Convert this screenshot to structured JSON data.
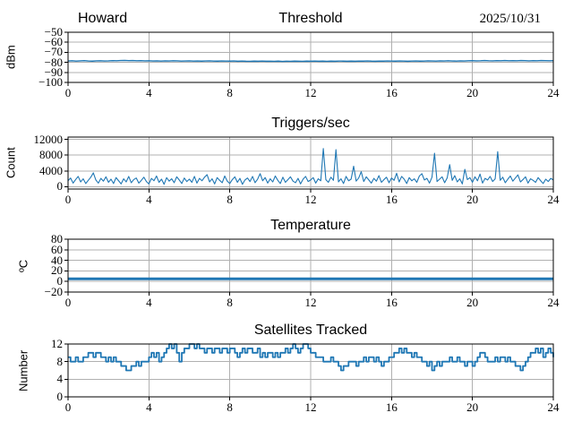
{
  "figure": {
    "background": "#ffffff",
    "line_color": "#1f77b4",
    "grid_color": "#b0b0b0",
    "axis_color": "#000000"
  },
  "chart_data": [
    {
      "type": "line",
      "title": "Threshold",
      "title_left": "Howard",
      "title_right": "2025/10/31",
      "ylabel": "dBm",
      "xlabel": "",
      "grid": true,
      "legend": "none",
      "xlim": [
        0,
        24
      ],
      "ylim": [
        -100,
        -50
      ],
      "xticks": [
        0,
        4,
        8,
        12,
        16,
        20,
        24
      ],
      "yticks": [
        -50,
        -60,
        -70,
        -80,
        -90,
        -100
      ],
      "x_start": 0,
      "x_step": 0.2,
      "y": [
        -78.6,
        -78.4,
        -78.7,
        -78.5,
        -78.3,
        -78.6,
        -78.8,
        -78.5,
        -78.4,
        -78.6,
        -78.5,
        -78.3,
        -78.4,
        -78.2,
        -78.1,
        -78.3,
        -78.2,
        -78.4,
        -78.3,
        -78.5,
        -78.4,
        -78.6,
        -78.5,
        -78.7,
        -78.5,
        -78.6,
        -78.4,
        -78.5,
        -78.7,
        -78.6,
        -78.5,
        -78.7,
        -78.6,
        -78.8,
        -78.6,
        -78.5,
        -78.7,
        -78.8,
        -78.6,
        -78.7,
        -78.8,
        -78.6,
        -78.9,
        -78.7,
        -78.9,
        -79.0,
        -78.8,
        -78.9,
        -78.7,
        -78.9,
        -78.9,
        -79.0,
        -78.8,
        -79.1,
        -78.9,
        -79.0,
        -78.8,
        -78.9,
        -79.0,
        -78.8,
        -78.9,
        -78.7,
        -78.9,
        -78.8,
        -79.0,
        -78.8,
        -78.9,
        -78.7,
        -78.8,
        -78.9,
        -78.8,
        -78.9,
        -78.7,
        -78.8,
        -78.6,
        -78.8,
        -78.9,
        -78.7,
        -78.8,
        -78.6,
        -78.7,
        -78.8,
        -78.6,
        -78.7,
        -78.9,
        -78.7,
        -78.6,
        -78.8,
        -78.7,
        -78.5,
        -78.6,
        -78.7,
        -78.5,
        -78.6,
        -78.4,
        -78.6,
        -78.7,
        -78.5,
        -78.6,
        -78.4,
        -78.3,
        -78.5,
        -78.4,
        -78.2,
        -78.4,
        -78.5,
        -78.3,
        -78.4,
        -78.2,
        -78.4,
        -78.3,
        -78.4,
        -78.2,
        -78.3,
        -78.5,
        -78.3,
        -78.4,
        -78.2,
        -78.3,
        -78.4,
        -78.3
      ]
    },
    {
      "type": "line",
      "title": "Triggers/sec",
      "ylabel": "Count",
      "xlabel": "",
      "grid": true,
      "legend": "none",
      "xlim": [
        0,
        24
      ],
      "ylim": [
        -600,
        12600
      ],
      "xticks": [
        0,
        4,
        8,
        12,
        16,
        20,
        24
      ],
      "yticks": [
        0,
        4000,
        8000,
        12000
      ],
      "x_start": 0,
      "x_step": 0.125,
      "y": [
        1500,
        2200,
        900,
        1800,
        2600,
        1200,
        2000,
        800,
        1600,
        2400,
        3500,
        1700,
        900,
        2100,
        1400,
        2500,
        1100,
        1900,
        800,
        2300,
        1500,
        700,
        2000,
        1200,
        2600,
        1000,
        1800,
        2200,
        900,
        1600,
        2400,
        1300,
        700,
        2100,
        1500,
        2700,
        1100,
        1900,
        600,
        2300,
        1400,
        2000,
        1000,
        2500,
        1700,
        800,
        2200,
        1300,
        1900,
        1100,
        2600,
        900,
        2100,
        1500,
        2400,
        3050,
        1200,
        2000,
        700,
        2300,
        1600,
        1000,
        2700,
        1400,
        800,
        1800,
        2500,
        1100,
        2100,
        600,
        1700,
        2200,
        1300,
        2600,
        1000,
        1900,
        3300,
        1500,
        2300,
        900,
        2000,
        1200,
        2700,
        1600,
        800,
        2400,
        1100,
        1800,
        2500,
        1400,
        1000,
        2100,
        700,
        1900,
        2600,
        1300,
        1700,
        2300,
        900,
        2000,
        1500,
        9700,
        1800,
        1100,
        2400,
        1600,
        9400,
        1200,
        2000,
        800,
        2600,
        1500,
        1900,
        5200,
        1400,
        2200,
        3800,
        1300,
        2500,
        1700,
        900,
        2100,
        1400,
        2800,
        1100,
        1800,
        2400,
        1000,
        2200,
        1600,
        3400,
        1200,
        2600,
        1900,
        800,
        2300,
        1500,
        2000,
        1100,
        2700,
        3300,
        1700,
        2100,
        900,
        2400,
        8500,
        1300,
        1900,
        2500,
        1000,
        2200,
        5600,
        1600,
        2800,
        1200,
        2000,
        700,
        4400,
        1800,
        2300,
        1100,
        2500,
        1500,
        3200,
        900,
        2100,
        1700,
        2600,
        1300,
        2000,
        8900,
        1600,
        2400,
        1000,
        1900,
        2700,
        1400,
        2200,
        3000,
        1200,
        1800,
        2500,
        900,
        2000,
        1600,
        1100,
        2300,
        1500,
        800,
        1900,
        1300,
        2100,
        1700
      ]
    },
    {
      "type": "line",
      "title": "Temperature",
      "ylabel": "ºC",
      "xlabel": "",
      "grid": true,
      "legend": "none",
      "xlim": [
        0,
        24
      ],
      "ylim": [
        -20,
        80
      ],
      "xticks": [
        0,
        4,
        8,
        12,
        16,
        20,
        24
      ],
      "yticks": [
        80,
        60,
        40,
        20,
        0,
        -20
      ],
      "x": [
        0,
        24
      ],
      "y": [
        5,
        5
      ]
    },
    {
      "type": "line",
      "title": "Satellites Tracked",
      "ylabel": "Number",
      "xlabel": "",
      "grid": true,
      "legend": "none",
      "step": true,
      "xlim": [
        0,
        24
      ],
      "ylim": [
        0,
        12
      ],
      "xticks": [
        0,
        4,
        8,
        12,
        16,
        20,
        24
      ],
      "yticks": [
        0,
        4,
        8,
        12
      ],
      "x_start": 0,
      "x_step": 0.125,
      "y": [
        9,
        8,
        8,
        9,
        8,
        8,
        9,
        9,
        10,
        10,
        9,
        10,
        10,
        9,
        9,
        8,
        9,
        8,
        9,
        8,
        8,
        7,
        7,
        6,
        6,
        7,
        7,
        8,
        7,
        8,
        8,
        8,
        9,
        10,
        9,
        10,
        8,
        9,
        10,
        11,
        12,
        11,
        12,
        10,
        8,
        10,
        11,
        11,
        12,
        12,
        11,
        12,
        11,
        11,
        10,
        11,
        11,
        10,
        11,
        11,
        10,
        11,
        11,
        10,
        11,
        11,
        10,
        9,
        10,
        11,
        10,
        11,
        11,
        10,
        10,
        11,
        9,
        10,
        9,
        10,
        10,
        9,
        10,
        9,
        10,
        10,
        11,
        10,
        11,
        12,
        11,
        10,
        11,
        12,
        12,
        11,
        10,
        10,
        9,
        9,
        9,
        8,
        8,
        8,
        9,
        8,
        8,
        7,
        6,
        7,
        7,
        8,
        8,
        8,
        7,
        8,
        8,
        9,
        8,
        9,
        9,
        8,
        9,
        8,
        7,
        8,
        8,
        9,
        9,
        10,
        10,
        11,
        10,
        11,
        10,
        10,
        9,
        10,
        9,
        9,
        8,
        8,
        7,
        8,
        6,
        7,
        8,
        7,
        8,
        8,
        8,
        9,
        8,
        8,
        9,
        8,
        8,
        7,
        8,
        8,
        7,
        8,
        9,
        10,
        10,
        9,
        8,
        8,
        8,
        9,
        8,
        9,
        9,
        8,
        9,
        8,
        8,
        7,
        7,
        6,
        7,
        8,
        9,
        10,
        10,
        11,
        10,
        11,
        9,
        10,
        11,
        10,
        9
      ]
    }
  ]
}
